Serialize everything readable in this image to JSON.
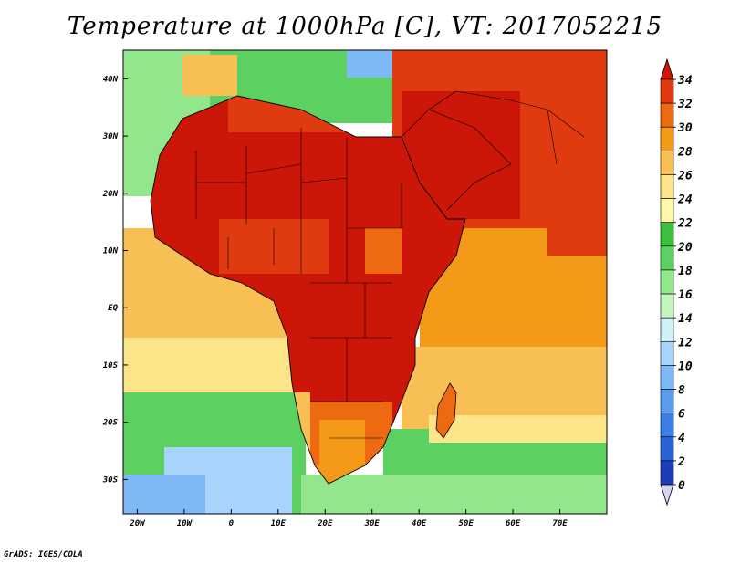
{
  "title": "Temperature at 1000hPa [C], VT: 2017052215",
  "footer": "GrADS: IGES/COLA",
  "chart_data": {
    "type": "map",
    "projection": "latlon",
    "lon_range": [
      -23,
      80
    ],
    "lat_range": [
      -36,
      45
    ],
    "x_ticks": [
      {
        "lon": -20,
        "label": "20W"
      },
      {
        "lon": -10,
        "label": "10W"
      },
      {
        "lon": 0,
        "label": "0"
      },
      {
        "lon": 10,
        "label": "10E"
      },
      {
        "lon": 20,
        "label": "20E"
      },
      {
        "lon": 30,
        "label": "30E"
      },
      {
        "lon": 40,
        "label": "40E"
      },
      {
        "lon": 50,
        "label": "50E"
      },
      {
        "lon": 60,
        "label": "60E"
      },
      {
        "lon": 70,
        "label": "70E"
      }
    ],
    "y_ticks": [
      {
        "lat": 40,
        "label": "40N"
      },
      {
        "lat": 30,
        "label": "30N"
      },
      {
        "lat": 20,
        "label": "20N"
      },
      {
        "lat": 10,
        "label": "10N"
      },
      {
        "lat": 0,
        "label": "EQ"
      },
      {
        "lat": -10,
        "label": "10S"
      },
      {
        "lat": -20,
        "label": "20S"
      },
      {
        "lat": -30,
        "label": "30S"
      }
    ],
    "colorbar": {
      "levels": [
        0,
        2,
        4,
        6,
        8,
        10,
        12,
        14,
        16,
        18,
        20,
        22,
        24,
        26,
        28,
        30,
        32,
        34
      ],
      "labels": [
        "0",
        "2",
        "4",
        "6",
        "8",
        "10",
        "12",
        "14",
        "16",
        "18",
        "20",
        "22",
        "24",
        "26",
        "28",
        "30",
        "32",
        "34"
      ],
      "colors": [
        "#160e88",
        "#1e3cb8",
        "#2a62d8",
        "#3c7fe6",
        "#5a9cf0",
        "#7eb8f6",
        "#a6d4fa",
        "#d0f0f8",
        "#c4f4c0",
        "#94e68c",
        "#5cd060",
        "#3cc03c",
        "#fff8a8",
        "#fce488",
        "#f8c054",
        "#f49a18",
        "#ee6a12",
        "#e03a10",
        "#cc1608"
      ]
    }
  }
}
